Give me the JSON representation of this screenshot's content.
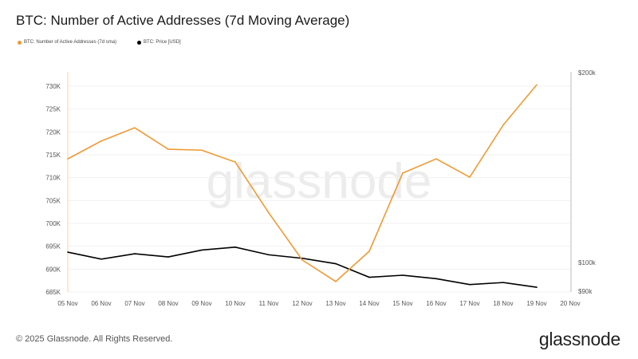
{
  "title": "BTC: Number of Active Addresses (7d Moving Average)",
  "footer": "© 2025 Glassnode. All Rights Reserved.",
  "logo": "glassnode",
  "watermark": "glassnode",
  "colors": {
    "active_addresses": "#f09a36",
    "price": "#000000"
  },
  "chart_data": {
    "type": "line",
    "x": [
      "05 Nov",
      "06 Nov",
      "07 Nov",
      "08 Nov",
      "09 Nov",
      "10 Nov",
      "11 Nov",
      "12 Nov",
      "13 Nov",
      "14 Nov",
      "15 Nov",
      "16 Nov",
      "17 Nov",
      "18 Nov",
      "19 Nov"
    ],
    "x_ticks": [
      "05 Nov",
      "06 Nov",
      "07 Nov",
      "08 Nov",
      "09 Nov",
      "10 Nov",
      "11 Nov",
      "12 Nov",
      "13 Nov",
      "14 Nov",
      "15 Nov",
      "16 Nov",
      "17 Nov",
      "18 Nov",
      "19 Nov",
      "20 Nov"
    ],
    "series": [
      {
        "name": "BTC: Number of Active Addresses (7d sma)",
        "axis": "left",
        "values": [
          714100,
          718000,
          720900,
          716200,
          716000,
          713400,
          702300,
          692000,
          687300,
          693900,
          711000,
          714100,
          710100,
          721500,
          730300
        ]
      },
      {
        "name": "BTC: Price [USD]",
        "axis": "right",
        "values": [
          103800,
          101200,
          103200,
          102000,
          104600,
          105700,
          102800,
          101500,
          99500,
          94700,
          95400,
          94200,
          92200,
          92900,
          91300
        ]
      }
    ],
    "y_left": {
      "range": [
        685000,
        733000
      ],
      "ticks": [
        685000,
        690000,
        695000,
        700000,
        705000,
        710000,
        715000,
        720000,
        725000,
        730000
      ],
      "tick_labels": [
        "685K",
        "690K",
        "695K",
        "700K",
        "705K",
        "710K",
        "715K",
        "720K",
        "725K",
        "730K"
      ]
    },
    "y_right": {
      "scale": "log",
      "range": [
        90000,
        200000
      ],
      "ticks": [
        90000,
        100000,
        200000
      ],
      "tick_labels": [
        "$90k",
        "$100k",
        "$200k"
      ]
    },
    "grid": true,
    "legend": "top-left"
  }
}
